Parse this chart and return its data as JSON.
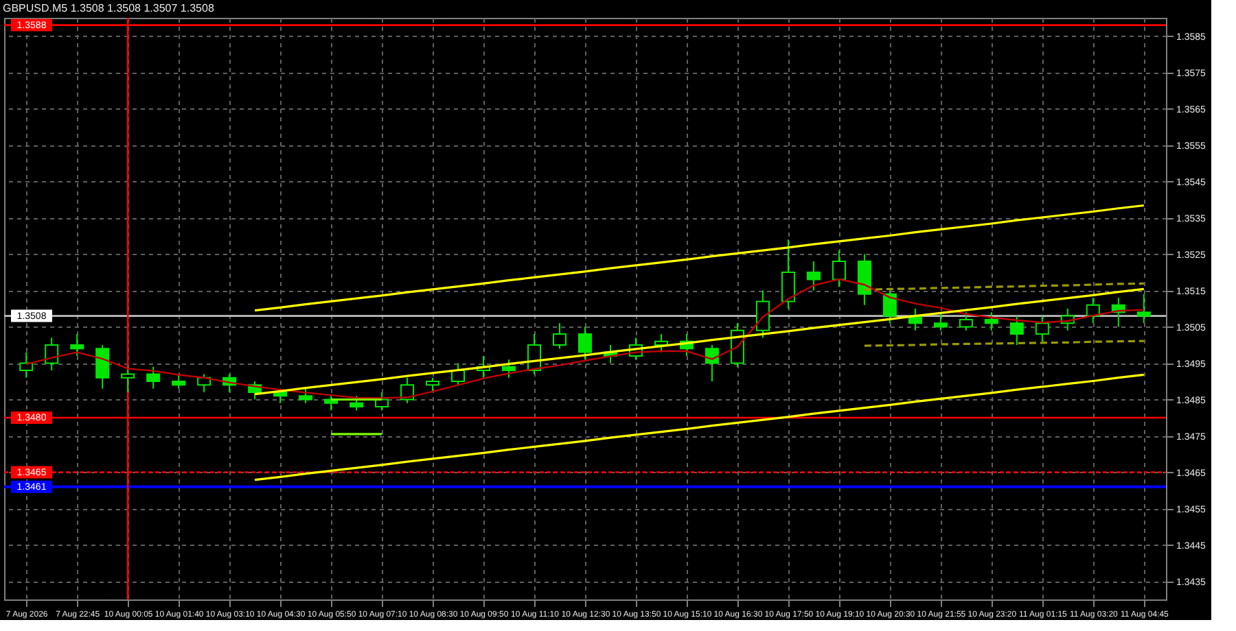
{
  "chart_data": {
    "type": "candlestick",
    "title": "GBPUSD.M5  1.3508 1.3508 1.3507 1.3508",
    "color": "#00e600",
    "categories": [
      "7 Aug 2026",
      null,
      "7 Aug 22:45",
      null,
      "10 Aug 00:05",
      null,
      "10 Aug 01:40",
      null,
      "10 Aug 03:10",
      null,
      "10 Aug 04:30",
      null,
      "10 Aug 05:50",
      null,
      "10 Aug 07:10",
      null,
      "10 Aug 08:30",
      null,
      "10 Aug 09:50",
      null,
      "10 Aug 11:10",
      null,
      "10 Aug 12:30",
      null,
      "10 Aug 13:50",
      null,
      "10 Aug 15:10",
      null,
      "10 Aug 16:30",
      null,
      "10 Aug 17:50",
      null,
      "10 Aug 19:10",
      null,
      "10 Aug 20:30",
      null,
      "10 Aug 21:55",
      null,
      "10 Aug 23:20",
      null,
      "11 Aug 01:15",
      null,
      "11 Aug 03:20",
      null,
      "11 Aug 04:45"
    ],
    "ohlc": [
      [
        1.3493,
        1.3498,
        1.3491,
        1.3495
      ],
      [
        1.3495,
        1.3502,
        1.3493,
        1.35
      ],
      [
        1.35,
        1.3503,
        1.3497,
        1.3499
      ],
      [
        1.3499,
        1.35,
        1.3488,
        1.3491
      ],
      [
        1.3491,
        1.3494,
        1.3487,
        1.3492
      ],
      [
        1.3492,
        1.3494,
        1.3488,
        1.349
      ],
      [
        1.349,
        1.3492,
        1.3488,
        1.3489
      ],
      [
        1.3489,
        1.3492,
        1.3487,
        1.3491
      ],
      [
        1.3491,
        1.3492,
        1.3487,
        1.3489
      ],
      [
        1.3489,
        1.349,
        1.3485,
        1.3487
      ],
      [
        1.3487,
        1.3488,
        1.3484,
        1.3486
      ],
      [
        1.3486,
        1.3488,
        1.3484,
        1.3485
      ],
      [
        1.3485,
        1.3486,
        1.3482,
        1.3484
      ],
      [
        1.3484,
        1.3486,
        1.3482,
        1.3483
      ],
      [
        1.3483,
        1.3487,
        1.3482,
        1.3485
      ],
      [
        1.3485,
        1.3491,
        1.3484,
        1.3489
      ],
      [
        1.3489,
        1.3491,
        1.3487,
        1.349
      ],
      [
        1.349,
        1.3495,
        1.3489,
        1.3493
      ],
      [
        1.3493,
        1.3497,
        1.3491,
        1.3494
      ],
      [
        1.3494,
        1.3496,
        1.3491,
        1.3493
      ],
      [
        1.3493,
        1.3503,
        1.3492,
        1.35
      ],
      [
        1.35,
        1.3506,
        1.3499,
        1.3503
      ],
      [
        1.3503,
        1.3505,
        1.3496,
        1.3498
      ],
      [
        1.3498,
        1.35,
        1.3495,
        1.3497
      ],
      [
        1.3497,
        1.3502,
        1.3496,
        1.35
      ],
      [
        1.35,
        1.3503,
        1.3498,
        1.3501
      ],
      [
        1.3501,
        1.3503,
        1.3497,
        1.3499
      ],
      [
        1.3499,
        1.35,
        1.349,
        1.3495
      ],
      [
        1.3495,
        1.3506,
        1.3494,
        1.3504
      ],
      [
        1.3504,
        1.3515,
        1.3502,
        1.3512
      ],
      [
        1.3512,
        1.3529,
        1.351,
        1.352
      ],
      [
        1.352,
        1.3523,
        1.3515,
        1.3518
      ],
      [
        1.3518,
        1.3526,
        1.3516,
        1.3523
      ],
      [
        1.3523,
        1.3525,
        1.3511,
        1.3514
      ],
      [
        1.3514,
        1.3515,
        1.3506,
        1.3508
      ],
      [
        1.3508,
        1.351,
        1.3504,
        1.3506
      ],
      [
        1.3506,
        1.3509,
        1.3504,
        1.3505
      ],
      [
        1.3505,
        1.3509,
        1.3504,
        1.3507
      ],
      [
        1.3507,
        1.3509,
        1.3504,
        1.3506
      ],
      [
        1.3506,
        1.3508,
        1.35,
        1.3503
      ],
      [
        1.3503,
        1.3508,
        1.3501,
        1.3506
      ],
      [
        1.3506,
        1.351,
        1.3504,
        1.3508
      ],
      [
        1.3508,
        1.3513,
        1.3506,
        1.3511
      ],
      [
        1.3511,
        1.3513,
        1.3505,
        1.3509
      ],
      [
        1.3509,
        1.3514,
        1.3506,
        1.3508
      ]
    ],
    "series": [
      {
        "type": "line",
        "color": "#c00000",
        "line_style": "solid",
        "values": [
          1.34947,
          1.34965,
          1.3498,
          1.34962,
          1.34935,
          1.34929,
          1.34918,
          1.3491,
          1.34897,
          1.34886,
          1.34877,
          1.34869,
          1.34862,
          1.34855,
          1.34854,
          1.34856,
          1.34872,
          1.3489,
          1.34908,
          1.34922,
          1.34934,
          1.34944,
          1.34957,
          1.34969,
          1.3498,
          1.34983,
          1.34983,
          1.34961,
          1.34995,
          1.35077,
          1.35127,
          1.35164,
          1.35181,
          1.35166,
          1.35131,
          1.35114,
          1.35102,
          1.35085,
          1.35076,
          1.35068,
          1.35062,
          1.35066,
          1.35081,
          1.35094,
          1.35097
        ]
      },
      {
        "type": "line",
        "color": "#ffff00",
        "line_style": "solid",
        "values": [
          null,
          null,
          null,
          null,
          null,
          null,
          null,
          null,
          null,
          1.35095,
          1.35103,
          1.35112,
          1.3512,
          1.35128,
          1.35136,
          1.35145,
          1.35153,
          1.35161,
          1.35169,
          1.35178,
          1.35186,
          1.35194,
          1.35202,
          1.35211,
          1.35219,
          1.35227,
          1.35235,
          1.35244,
          1.35252,
          1.3526,
          1.35268,
          1.35277,
          1.35285,
          1.35293,
          1.35301,
          1.3531,
          1.35318,
          1.35326,
          1.35334,
          1.35343,
          1.35351,
          1.35359,
          1.35367,
          1.35376,
          1.35384
        ]
      },
      {
        "type": "line",
        "color": "#ffff00",
        "line_style": "solid",
        "values": [
          null,
          null,
          null,
          null,
          null,
          null,
          null,
          null,
          null,
          1.34865,
          1.34873,
          1.34882,
          1.3489,
          1.34898,
          1.34906,
          1.34915,
          1.34923,
          1.34931,
          1.34939,
          1.34948,
          1.34956,
          1.34964,
          1.34972,
          1.34981,
          1.34989,
          1.34997,
          1.35005,
          1.35014,
          1.35022,
          1.3503,
          1.35038,
          1.35047,
          1.35055,
          1.35063,
          1.35071,
          1.3508,
          1.35088,
          1.35096,
          1.35104,
          1.35113,
          1.35121,
          1.35129,
          1.35137,
          1.35146,
          1.35154
        ]
      },
      {
        "type": "line",
        "color": "#ffff00",
        "line_style": "solid",
        "values": [
          null,
          null,
          null,
          null,
          null,
          null,
          null,
          null,
          null,
          1.34629,
          1.34637,
          1.34646,
          1.34654,
          1.34662,
          1.3467,
          1.34679,
          1.34687,
          1.34695,
          1.34703,
          1.34712,
          1.3472,
          1.34728,
          1.34736,
          1.34745,
          1.34753,
          1.34761,
          1.34769,
          1.34778,
          1.34786,
          1.34794,
          1.34802,
          1.34811,
          1.34819,
          1.34827,
          1.34835,
          1.34844,
          1.34852,
          1.3486,
          1.34868,
          1.34877,
          1.34885,
          1.34893,
          1.34901,
          1.3491,
          1.34918
        ]
      },
      {
        "type": "line",
        "color": "#9a9a00",
        "line_style": "dashed",
        "values": [
          null,
          null,
          null,
          null,
          null,
          null,
          null,
          null,
          null,
          null,
          null,
          null,
          null,
          null,
          null,
          null,
          null,
          null,
          null,
          null,
          null,
          null,
          null,
          null,
          null,
          null,
          null,
          null,
          null,
          null,
          null,
          null,
          null,
          1.35152,
          1.35154,
          1.35155,
          1.35157,
          1.35158,
          1.3516,
          1.35161,
          1.35163,
          1.35164,
          1.35166,
          1.35168,
          1.35169
        ]
      },
      {
        "type": "line",
        "color": "#9a9a00",
        "line_style": "dashed",
        "values": [
          null,
          null,
          null,
          null,
          null,
          null,
          null,
          null,
          null,
          null,
          null,
          null,
          null,
          null,
          null,
          null,
          null,
          null,
          null,
          null,
          null,
          null,
          null,
          null,
          null,
          null,
          null,
          null,
          null,
          null,
          null,
          null,
          null,
          1.34998,
          1.34999,
          1.35,
          1.35002,
          1.35003,
          1.35004,
          1.35005,
          1.35006,
          1.35007,
          1.35009,
          1.3501,
          1.35011
        ]
      },
      {
        "type": "line",
        "color": "#7cfc00",
        "line_style": "solid",
        "values": [
          null,
          null,
          null,
          null,
          null,
          null,
          null,
          null,
          null,
          null,
          null,
          null,
          1.3485,
          1.3485,
          1.3485,
          null,
          null,
          null,
          null,
          null,
          null,
          null,
          null,
          null,
          null,
          null,
          null,
          null,
          null,
          null,
          null,
          null,
          null,
          null,
          null,
          null,
          null,
          null,
          null,
          null,
          null,
          null,
          null,
          null,
          null
        ]
      },
      {
        "type": "line",
        "color": "#7cfc00",
        "line_style": "solid",
        "values": [
          null,
          null,
          null,
          null,
          null,
          null,
          null,
          null,
          null,
          null,
          null,
          null,
          1.34755,
          1.34755,
          1.34755,
          null,
          null,
          null,
          null,
          null,
          null,
          null,
          null,
          null,
          null,
          null,
          null,
          null,
          null,
          null,
          null,
          null,
          null,
          null,
          null,
          null,
          null,
          null,
          null,
          null,
          null,
          null,
          null,
          null,
          null
        ]
      }
    ],
    "ref_lines": [
      {
        "axis": "y",
        "value": 1.3588,
        "label": "1.3588",
        "color": "#ff0000",
        "line_style": "solid"
      },
      {
        "axis": "y",
        "value": 1.3508,
        "label": "1.3508",
        "color": "#c0c0c0",
        "line_style": "solid"
      },
      {
        "axis": "y",
        "value": 1.348,
        "label": "1.3480",
        "color": "#ff0000",
        "line_style": "solid"
      },
      {
        "axis": "y",
        "value": 1.3465,
        "label": "1.3465",
        "color": "#ff0000",
        "line_style": "dotted"
      },
      {
        "axis": "y",
        "value": 1.3461,
        "label": "1.3461",
        "color": "#0000ff",
        "line_style": "solid"
      },
      {
        "axis": "x",
        "value": "10 Aug 00:05",
        "color": "#ff0000",
        "line_style": "solid"
      }
    ],
    "ylim": [
      1.343,
      1.359
    ],
    "yticks": [
      1.3435,
      1.3445,
      1.3455,
      1.3465,
      1.3475,
      1.3485,
      1.3495,
      1.3505,
      1.3515,
      1.3525,
      1.3535,
      1.3545,
      1.3555,
      1.3565,
      1.3575,
      1.3585
    ],
    "grid": true
  }
}
